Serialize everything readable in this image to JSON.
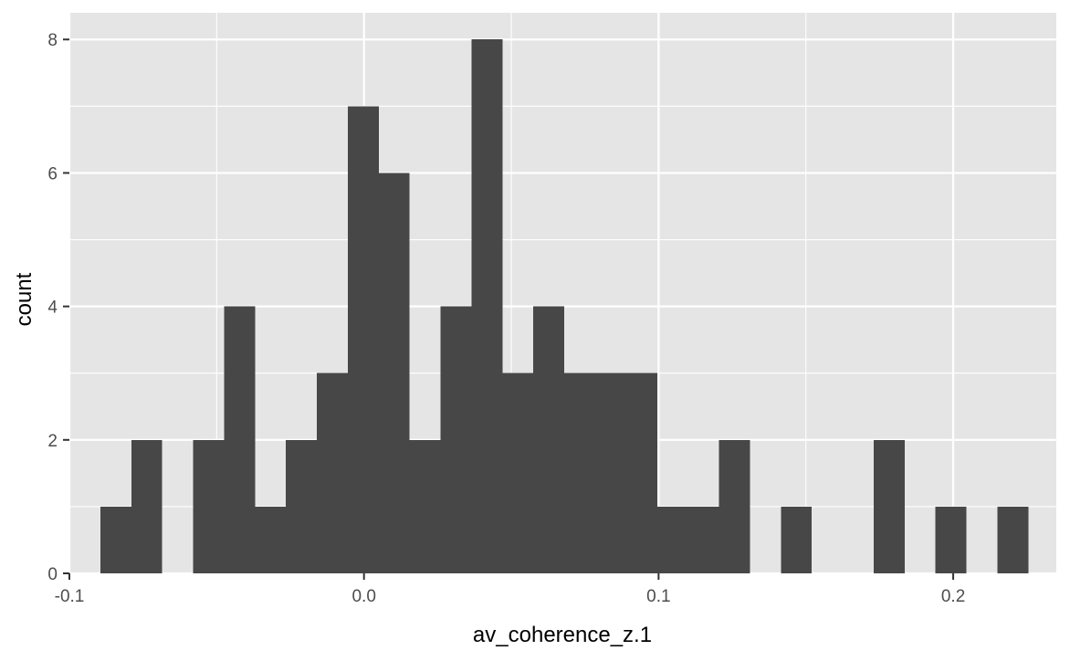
{
  "chart_data": {
    "type": "bar",
    "subtype": "histogram",
    "title": "",
    "xlabel": "av_coherence_z.1",
    "ylabel": "count",
    "xlim": [
      -0.1,
      0.235
    ],
    "ylim": [
      0,
      8.4
    ],
    "x_ticks": [
      -0.1,
      0.0,
      0.1,
      0.2
    ],
    "x_tick_labels": [
      "-0.1",
      "0.0",
      "0.1",
      "0.2"
    ],
    "y_ticks": [
      0,
      2,
      4,
      6,
      8
    ],
    "y_tick_labels": [
      "0",
      "2",
      "4",
      "6",
      "8"
    ],
    "bin_width": 0.0105,
    "bin_start": -0.0895,
    "values": [
      1,
      2,
      0,
      2,
      4,
      1,
      2,
      3,
      7,
      6,
      2,
      4,
      8,
      3,
      4,
      3,
      3,
      3,
      1,
      1,
      2,
      0,
      1,
      0,
      0,
      2,
      0,
      1,
      0,
      1
    ],
    "grid": true,
    "legend": "none",
    "colors": {
      "bar": "#474747",
      "panel_background": "#e5e5e5",
      "grid": "#ffffff",
      "tick": "#333333"
    }
  }
}
